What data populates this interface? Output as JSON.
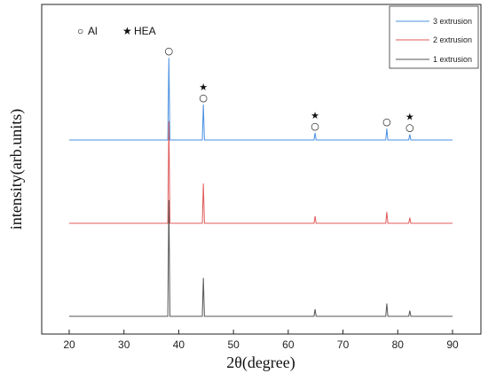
{
  "chart_data": {
    "type": "line",
    "xlabel": "2θ(degree)",
    "ylabel": "intensity(arb.units)",
    "xlim": [
      20,
      90
    ],
    "xticks": [
      20,
      30,
      40,
      50,
      60,
      70,
      80,
      90
    ],
    "grid": false,
    "legend_position": "top-right",
    "annotation_legend": [
      {
        "symbol": "○",
        "label": "Al"
      },
      {
        "symbol": "★",
        "label": "HEA"
      }
    ],
    "series": [
      {
        "name": "3 extrusion",
        "color": "#4a90e2",
        "peaks": [
          {
            "x": 38.2,
            "height": 0.58
          },
          {
            "x": 44.5,
            "height": 0.25
          },
          {
            "x": 64.9,
            "height": 0.05
          },
          {
            "x": 78.0,
            "height": 0.08
          },
          {
            "x": 82.2,
            "height": 0.04
          }
        ]
      },
      {
        "name": "2 extrusion",
        "color": "#e05a5a",
        "peaks": [
          {
            "x": 38.2,
            "height": 0.72
          },
          {
            "x": 44.5,
            "height": 0.28
          },
          {
            "x": 64.9,
            "height": 0.05
          },
          {
            "x": 78.0,
            "height": 0.08
          },
          {
            "x": 82.2,
            "height": 0.04
          }
        ]
      },
      {
        "name": "1 extrusion",
        "color": "#555555",
        "peaks": [
          {
            "x": 38.2,
            "height": 0.82
          },
          {
            "x": 44.5,
            "height": 0.27
          },
          {
            "x": 64.9,
            "height": 0.05
          },
          {
            "x": 78.0,
            "height": 0.09
          },
          {
            "x": 82.2,
            "height": 0.04
          }
        ]
      }
    ],
    "peak_markers": [
      {
        "x": 38.2,
        "symbols": [
          "○"
        ]
      },
      {
        "x": 44.5,
        "symbols": [
          "★",
          "○"
        ]
      },
      {
        "x": 64.9,
        "symbols": [
          "★",
          "○"
        ]
      },
      {
        "x": 78.0,
        "symbols": [
          "○"
        ]
      },
      {
        "x": 82.2,
        "symbols": [
          "★",
          "○"
        ]
      }
    ]
  }
}
